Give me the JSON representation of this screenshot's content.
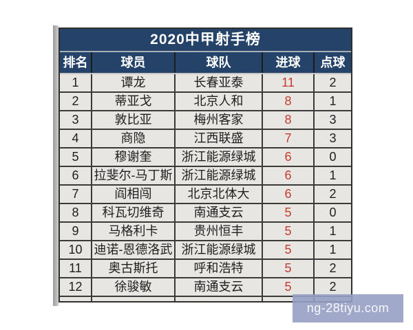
{
  "chart_data": {
    "type": "table",
    "title": "2020中甲射手榜",
    "columns": [
      "排名",
      "球员",
      "球队",
      "进球",
      "点球"
    ],
    "rows": [
      {
        "rank": "1",
        "player": "谭龙",
        "team": "长春亚泰",
        "goals": "11",
        "penalty": "2"
      },
      {
        "rank": "2",
        "player": "蒂亚戈",
        "team": "北京人和",
        "goals": "8",
        "penalty": "1"
      },
      {
        "rank": "3",
        "player": "敦比亚",
        "team": "梅州客家",
        "goals": "8",
        "penalty": "3"
      },
      {
        "rank": "4",
        "player": "商隐",
        "team": "江西联盛",
        "goals": "7",
        "penalty": "3"
      },
      {
        "rank": "5",
        "player": "穆谢奎",
        "team": "浙江能源绿城",
        "goals": "6",
        "penalty": "0"
      },
      {
        "rank": "6",
        "player": "拉斐尔-马丁斯",
        "team": "浙江能源绿城",
        "goals": "6",
        "penalty": "1"
      },
      {
        "rank": "7",
        "player": "阎相闯",
        "team": "北京北体大",
        "goals": "6",
        "penalty": "2"
      },
      {
        "rank": "8",
        "player": "科瓦切维奇",
        "team": "南通支云",
        "goals": "5",
        "penalty": "0"
      },
      {
        "rank": "9",
        "player": "马格利卡",
        "team": "贵州恒丰",
        "goals": "5",
        "penalty": "1"
      },
      {
        "rank": "10",
        "player": "迪诺-恩德洛武",
        "team": "浙江能源绿城",
        "goals": "5",
        "penalty": "1"
      },
      {
        "rank": "11",
        "player": "奥古斯托",
        "team": "呼和浩特",
        "goals": "5",
        "penalty": "2"
      },
      {
        "rank": "12",
        "player": "徐骏敏",
        "team": "南通支云",
        "goals": "5",
        "penalty": "2"
      }
    ],
    "layout": {
      "legend": "none",
      "grid": "table-borders"
    }
  },
  "colors": {
    "header_bg": "#254369",
    "header_text": "#ffffff",
    "row_bg": "#e8e6e3",
    "border": "#3a3a3a",
    "goals_red": "#c43a2c",
    "watermark_bg": "#97a0c4",
    "watermark_text": "#f7f7fa"
  },
  "watermark": {
    "text": "ng-28tiyu.com"
  }
}
